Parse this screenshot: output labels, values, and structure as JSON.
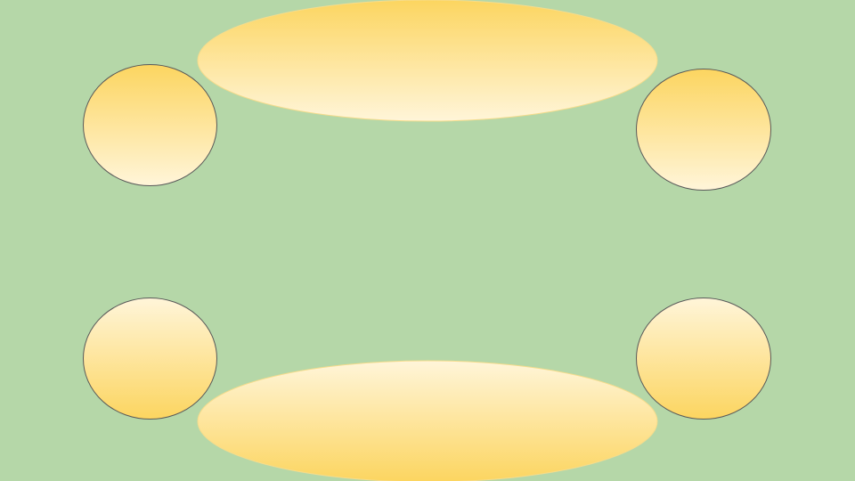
{
  "colors": {
    "background": "#b5d7a8",
    "gradient_deep": "#fcd560",
    "gradient_light": "#fff5d9",
    "circle_outline": "#595959",
    "banner_outline": "#f5dc8c"
  },
  "shapes": {
    "top_banner": {
      "gradient": "deep-to-light"
    },
    "bottom_banner": {
      "gradient": "light-to-deep"
    },
    "circle_top_left": {
      "gradient": "deep-to-light"
    },
    "circle_top_right": {
      "gradient": "deep-to-light"
    },
    "circle_bottom_left": {
      "gradient": "light-to-deep"
    },
    "circle_bottom_right": {
      "gradient": "light-to-deep"
    }
  }
}
